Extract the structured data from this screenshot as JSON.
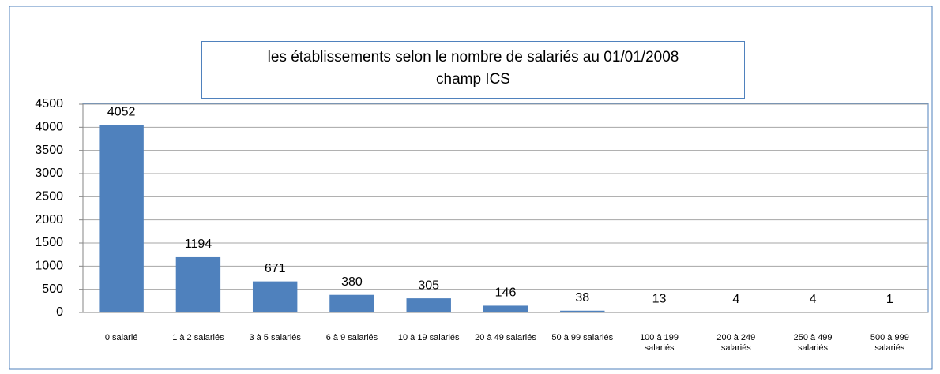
{
  "chart_data": {
    "type": "bar",
    "title": "les établissements selon le nombre de salariés au 01/01/2008",
    "subtitle": "champ ICS",
    "categories": [
      "0 salarié",
      "1 à 2 salariés",
      "3 à 5 salariés",
      "6 à 9 salariés",
      "10 à 19 salariés",
      "20 à 49 salariés",
      "50 à 99 salariés",
      "100 à 199 salariés",
      "200 à 249 salariés",
      "250 à 499 salariés",
      "500 à 999 salariés"
    ],
    "values": [
      4052,
      1194,
      671,
      380,
      305,
      146,
      38,
      13,
      4,
      4,
      1
    ],
    "color": "#4f81bd",
    "ylim": [
      0,
      4500
    ],
    "yticks": [
      0,
      500,
      1000,
      1500,
      2000,
      2500,
      3000,
      3500,
      4000,
      4500
    ],
    "grid": true
  }
}
